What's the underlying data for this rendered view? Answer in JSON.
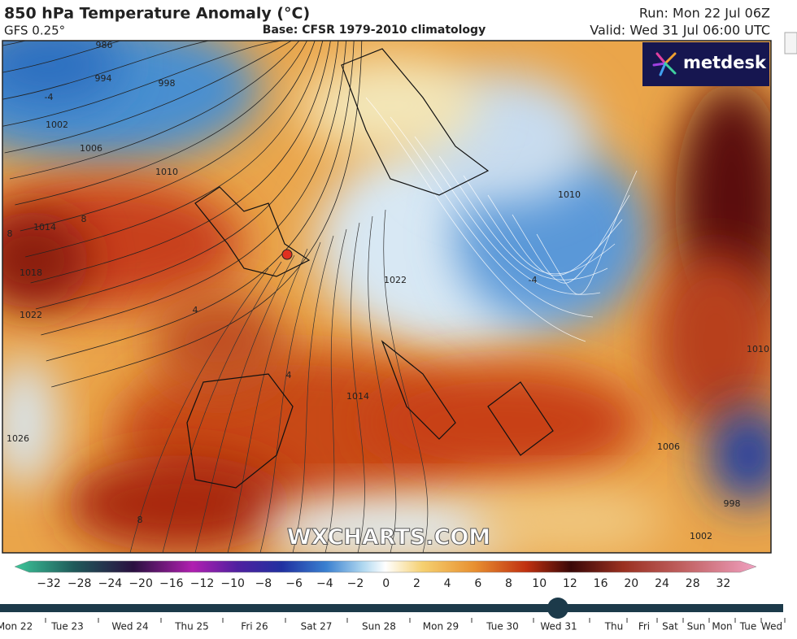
{
  "header": {
    "title": "850 hPa Temperature Anomaly (°C)",
    "model": "GFS 0.25°",
    "base": "Base: CFSR 1979-2010 climatology",
    "run": "Run: Mon 22 Jul 06Z",
    "valid": "Valid: Wed 31 Jul 06:00 UTC"
  },
  "logo": "metdesk",
  "watermark": "WXCHARTS.COM",
  "contour_labels": [
    "986",
    "994",
    "998",
    "1002",
    "1006",
    "1010",
    "1014",
    "1018",
    "1022",
    "1026",
    "1022",
    "1014",
    "1010",
    "1006",
    "1010",
    "1002",
    "998",
    "-4",
    "8",
    "8",
    "4",
    "4",
    "-4",
    "8"
  ],
  "colorbar": {
    "ticks": [
      "−32",
      "−28",
      "−24",
      "−20",
      "−16",
      "−12",
      "−10",
      "−8",
      "−6",
      "−4",
      "−2",
      "0",
      "2",
      "4",
      "6",
      "8",
      "10",
      "12",
      "16",
      "20",
      "24",
      "28",
      "32"
    ]
  },
  "timeline": {
    "days": [
      "Mon 22",
      "Tue 23",
      "Wed 24",
      "Thu 25",
      "Fri 26",
      "Sat 27",
      "Sun 28",
      "Mon 29",
      "Tue 30",
      "Wed 31",
      "Thu",
      "Fri",
      "Sat",
      "Sun",
      "Mon",
      "Tue",
      "Wed"
    ]
  }
}
